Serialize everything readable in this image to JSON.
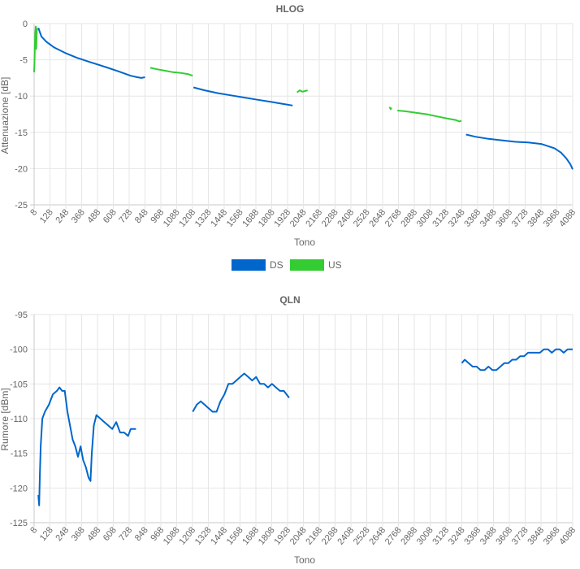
{
  "chart_data": [
    {
      "type": "line",
      "title": "HLOG",
      "xlabel": "Tono",
      "ylabel": "Attenuazione [dB]",
      "xlim": [
        8,
        4088
      ],
      "ylim": [
        -25,
        0
      ],
      "x_ticks": [
        "8",
        "128",
        "248",
        "368",
        "488",
        "608",
        "728",
        "848",
        "968",
        "1088",
        "1208",
        "1328",
        "1448",
        "1568",
        "1688",
        "1808",
        "1928",
        "2048",
        "2168",
        "2288",
        "2408",
        "2528",
        "2648",
        "2768",
        "2888",
        "3008",
        "3128",
        "3248",
        "3368",
        "3488",
        "3608",
        "3728",
        "3848",
        "3968",
        "4088"
      ],
      "y_ticks": [
        "0",
        "-5",
        "-10",
        "-15",
        "-20",
        "-25"
      ],
      "grid": true,
      "legend": "bottom",
      "series": [
        {
          "name": "DS",
          "color": "#0066cc",
          "segments": [
            [
              [
                40,
                -0.6
              ],
              [
                64,
                -1.8
              ],
              [
                100,
                -2.5
              ],
              [
                160,
                -3.3
              ],
              [
                250,
                -4.1
              ],
              [
                330,
                -4.7
              ],
              [
                430,
                -5.3
              ],
              [
                550,
                -6.0
              ],
              [
                650,
                -6.6
              ],
              [
                740,
                -7.2
              ],
              [
                790,
                -7.4
              ],
              [
                820,
                -7.5
              ],
              [
                848,
                -7.4
              ]
            ],
            [
              [
                1215,
                -8.8
              ],
              [
                1300,
                -9.2
              ],
              [
                1400,
                -9.6
              ],
              [
                1500,
                -9.9
              ],
              [
                1600,
                -10.2
              ],
              [
                1700,
                -10.5
              ],
              [
                1800,
                -10.8
              ],
              [
                1900,
                -11.1
              ],
              [
                1966,
                -11.3
              ]
            ],
            [
              [
                3280,
                -15.3
              ],
              [
                3350,
                -15.6
              ],
              [
                3450,
                -15.9
              ],
              [
                3550,
                -16.1
              ],
              [
                3650,
                -16.3
              ],
              [
                3750,
                -16.4
              ],
              [
                3850,
                -16.6
              ],
              [
                3950,
                -17.2
              ],
              [
                4000,
                -17.8
              ],
              [
                4040,
                -18.6
              ],
              [
                4070,
                -19.4
              ],
              [
                4088,
                -20.1
              ]
            ]
          ]
        },
        {
          "name": "US",
          "color": "#33cc33",
          "segments": [
            [
              [
                8,
                -6.7
              ],
              [
                12,
                -4.8
              ],
              [
                16,
                -1.5
              ],
              [
                20,
                -0.4
              ],
              [
                24,
                -3.5
              ],
              [
                28,
                -1.0
              ],
              [
                32,
                -0.6
              ]
            ],
            [
              [
                888,
                -6.1
              ],
              [
                940,
                -6.3
              ],
              [
                1000,
                -6.5
              ],
              [
                1060,
                -6.7
              ],
              [
                1120,
                -6.8
              ],
              [
                1180,
                -7.0
              ],
              [
                1209,
                -7.2
              ]
            ],
            [
              [
                2000,
                -9.5
              ],
              [
                2020,
                -9.2
              ],
              [
                2040,
                -9.4
              ],
              [
                2060,
                -9.3
              ],
              [
                2080,
                -9.2
              ]
            ],
            [
              [
                2700,
                -11.5
              ],
              [
                2710,
                -11.8
              ],
              [
                2715,
                -11.6
              ]
            ],
            [
              [
                2760,
                -12.0
              ],
              [
                2820,
                -12.1
              ],
              [
                2900,
                -12.3
              ],
              [
                2980,
                -12.5
              ],
              [
                3060,
                -12.8
              ],
              [
                3140,
                -13.1
              ],
              [
                3200,
                -13.3
              ],
              [
                3230,
                -13.5
              ],
              [
                3245,
                -13.4
              ]
            ]
          ]
        }
      ]
    },
    {
      "type": "line",
      "title": "QLN",
      "xlabel": "Tono",
      "ylabel": "Rumore [dBm]",
      "xlim": [
        8,
        4088
      ],
      "ylim": [
        -125,
        -95
      ],
      "x_ticks": [
        "8",
        "128",
        "248",
        "368",
        "488",
        "608",
        "728",
        "848",
        "968",
        "1088",
        "1208",
        "1328",
        "1448",
        "1568",
        "1688",
        "1808",
        "1928",
        "2048",
        "2168",
        "2288",
        "2408",
        "2528",
        "2648",
        "2768",
        "2888",
        "3008",
        "3128",
        "3248",
        "3368",
        "3488",
        "3608",
        "3728",
        "3848",
        "3968",
        "4088"
      ],
      "y_ticks": [
        "-95",
        "-100",
        "-105",
        "-110",
        "-115",
        "-120",
        "-125"
      ],
      "grid": true,
      "series": [
        {
          "name": "DS",
          "color": "#0066cc",
          "segments": [
            [
              [
                40,
                -121
              ],
              [
                46,
                -122.5
              ],
              [
                52,
                -118
              ],
              [
                58,
                -114
              ],
              [
                70,
                -110
              ],
              [
                90,
                -109
              ],
              [
                120,
                -108
              ],
              [
                150,
                -106.5
              ],
              [
                180,
                -106
              ],
              [
                200,
                -105.5
              ],
              [
                220,
                -106
              ],
              [
                240,
                -106
              ],
              [
                260,
                -109
              ],
              [
                280,
                -111
              ],
              [
                300,
                -113
              ],
              [
                320,
                -114
              ],
              [
                340,
                -115.5
              ],
              [
                360,
                -114
              ],
              [
                380,
                -116
              ],
              [
                400,
                -117
              ],
              [
                420,
                -118.5
              ],
              [
                435,
                -119
              ],
              [
                445,
                -115
              ],
              [
                460,
                -111
              ],
              [
                480,
                -109.5
              ],
              [
                510,
                -110
              ],
              [
                540,
                -110.5
              ],
              [
                570,
                -111
              ],
              [
                600,
                -111.5
              ],
              [
                630,
                -110.5
              ],
              [
                660,
                -112
              ],
              [
                690,
                -112
              ],
              [
                720,
                -112.5
              ],
              [
                740,
                -111.5
              ],
              [
                760,
                -111.5
              ],
              [
                780,
                -111.5
              ]
            ],
            [
              [
                1210,
                -109
              ],
              [
                1240,
                -108
              ],
              [
                1270,
                -107.5
              ],
              [
                1300,
                -108
              ],
              [
                1330,
                -108.5
              ],
              [
                1360,
                -109
              ],
              [
                1390,
                -109
              ],
              [
                1420,
                -107.5
              ],
              [
                1450,
                -106.5
              ],
              [
                1480,
                -105
              ],
              [
                1510,
                -105
              ],
              [
                1540,
                -104.5
              ],
              [
                1570,
                -104
              ],
              [
                1600,
                -103.5
              ],
              [
                1630,
                -104
              ],
              [
                1660,
                -104.5
              ],
              [
                1690,
                -104
              ],
              [
                1720,
                -105
              ],
              [
                1750,
                -105
              ],
              [
                1780,
                -105.5
              ],
              [
                1810,
                -105
              ],
              [
                1840,
                -105.5
              ],
              [
                1870,
                -106
              ],
              [
                1900,
                -106
              ],
              [
                1920,
                -106.5
              ],
              [
                1940,
                -107
              ]
            ],
            [
              [
                3248,
                -102
              ],
              [
                3270,
                -101.5
              ],
              [
                3300,
                -102
              ],
              [
                3330,
                -102.5
              ],
              [
                3360,
                -102.5
              ],
              [
                3390,
                -103
              ],
              [
                3420,
                -103
              ],
              [
                3450,
                -102.5
              ],
              [
                3480,
                -103
              ],
              [
                3510,
                -103
              ],
              [
                3540,
                -102.5
              ],
              [
                3570,
                -102
              ],
              [
                3600,
                -102
              ],
              [
                3630,
                -101.5
              ],
              [
                3660,
                -101.5
              ],
              [
                3690,
                -101
              ],
              [
                3720,
                -101
              ],
              [
                3750,
                -100.5
              ],
              [
                3780,
                -100.5
              ],
              [
                3810,
                -100.5
              ],
              [
                3840,
                -100.5
              ],
              [
                3870,
                -100
              ],
              [
                3900,
                -100
              ],
              [
                3930,
                -100.5
              ],
              [
                3960,
                -100
              ],
              [
                3990,
                -100
              ],
              [
                4020,
                -100.5
              ],
              [
                4050,
                -100
              ],
              [
                4088,
                -100
              ]
            ]
          ]
        }
      ]
    }
  ],
  "legend": {
    "items": [
      {
        "label": "DS",
        "color": "#0066cc"
      },
      {
        "label": "US",
        "color": "#33cc33"
      }
    ]
  }
}
